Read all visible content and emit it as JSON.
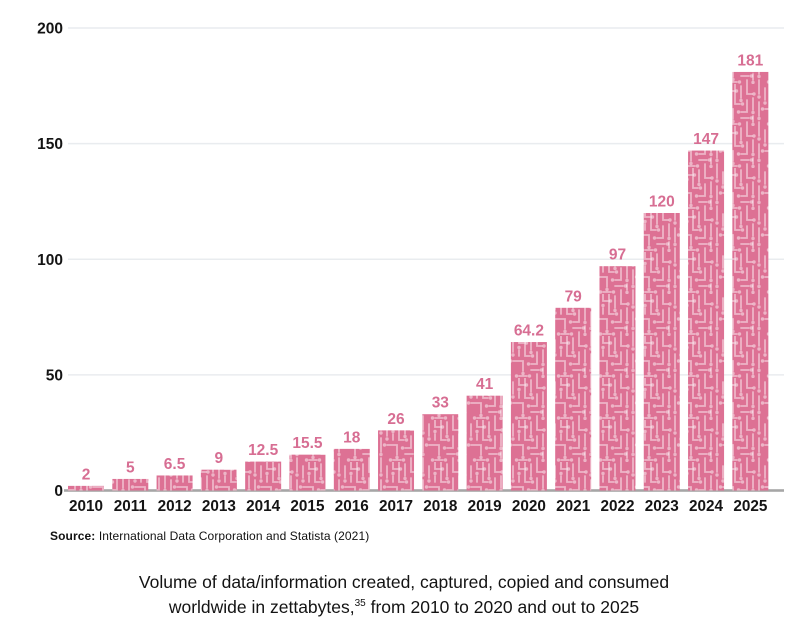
{
  "chart_data": {
    "type": "bar",
    "title": "",
    "xlabel": "",
    "ylabel": "",
    "categories": [
      "2010",
      "2011",
      "2012",
      "2013",
      "2014",
      "2015",
      "2016",
      "2017",
      "2018",
      "2019",
      "2020",
      "2021",
      "2022",
      "2023",
      "2024",
      "2025"
    ],
    "values": [
      2,
      5,
      6.5,
      9,
      12.5,
      15.5,
      18,
      26,
      33,
      41,
      64.2,
      79,
      97,
      120,
      147,
      181
    ],
    "ylim": [
      0,
      200
    ],
    "yticks": [
      0,
      50,
      100,
      150,
      200
    ],
    "grid": "horizontal-light",
    "legend": "none",
    "bar_color": "#dd7194",
    "bar_pattern": "circuit-board",
    "value_label_color": "#d76e93",
    "axis_line_color": "#a6a6a6"
  },
  "source": {
    "label": "Source:",
    "text": " International Data Corporation and Statista (2021)"
  },
  "caption": {
    "line1": "Volume of data/information created, captured, copied and consumed",
    "line2_pre": "worldwide in zettabytes,",
    "footnote": "35",
    "line2_post": " from 2010 to 2020 and out to 2025"
  }
}
